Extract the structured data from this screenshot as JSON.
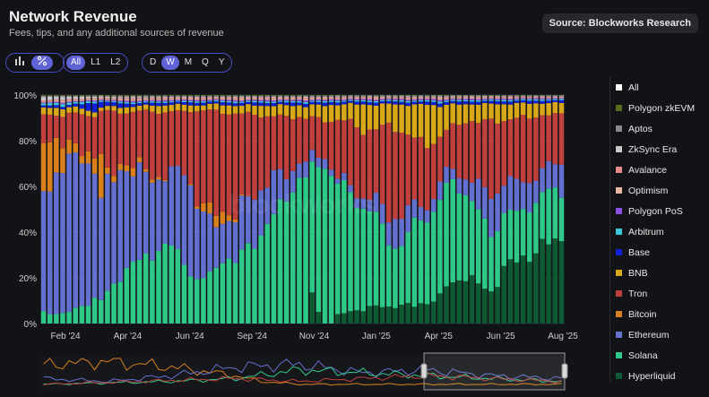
{
  "header": {
    "title": "Network Revenue",
    "subtitle": "Fees, tips, and any additional sources of revenue",
    "source_label": "Source: Blockworks Research"
  },
  "controls": {
    "chart_icons": [
      "bar-chart-icon",
      "percent-icon"
    ],
    "layer_options": [
      "All",
      "L1",
      "L2"
    ],
    "layer_selected": "All",
    "period_options": [
      "D",
      "W",
      "M",
      "Q",
      "Y"
    ],
    "period_selected": "W"
  },
  "legend": {
    "items": [
      {
        "label": "All",
        "color": "#ffffff"
      },
      {
        "label": "Polygon zkEVM",
        "color": "#5a6b1e"
      },
      {
        "label": "Aptos",
        "color": "#8a8a8a"
      },
      {
        "label": "ZkSync Era",
        "color": "#c8c8c8"
      },
      {
        "label": "Avalance",
        "color": "#e88a8a"
      },
      {
        "label": "Optimism",
        "color": "#e8b8a0"
      },
      {
        "label": "Polygon PoS",
        "color": "#8b4ee0"
      },
      {
        "label": "Arbitrum",
        "color": "#3cc7d8"
      },
      {
        "label": "Base",
        "color": "#1020d8"
      },
      {
        "label": "BNB",
        "color": "#d8a818"
      },
      {
        "label": "Tron",
        "color": "#c0403e"
      },
      {
        "label": "Bitcoin",
        "color": "#d8801c"
      },
      {
        "label": "Ethereum",
        "color": "#6470cf"
      },
      {
        "label": "Solana",
        "color": "#2ec889"
      },
      {
        "label": "Hyperliquid",
        "color": "#0e5a34"
      }
    ]
  },
  "chart_data": {
    "type": "bar",
    "stacked": true,
    "normalized": true,
    "x_ticks": [
      "Feb '24",
      "Apr '24",
      "Jun '24",
      "Sep '24",
      "Nov '24",
      "Jan '25",
      "Apr '25",
      "Jun '25",
      "Aug '25"
    ],
    "y_ticks": [
      "0%",
      "20%",
      "40%",
      "60%",
      "80%",
      "100%"
    ],
    "ylim": [
      0,
      100
    ],
    "grid": true,
    "legend_position": "right",
    "watermark": "blockworks",
    "week_count": 82,
    "series": [
      {
        "name": "Hyperliquid",
        "color": "#0e5a34",
        "keypoints": [
          [
            0,
            0
          ],
          [
            41,
            0
          ],
          [
            42,
            12
          ],
          [
            43,
            4
          ],
          [
            44,
            0
          ],
          [
            45,
            0
          ],
          [
            46,
            3
          ],
          [
            48,
            5
          ],
          [
            52,
            6
          ],
          [
            55,
            7
          ],
          [
            58,
            6
          ],
          [
            60,
            8
          ],
          [
            62,
            8
          ],
          [
            63,
            13
          ],
          [
            66,
            18
          ],
          [
            68,
            14
          ],
          [
            70,
            12
          ],
          [
            72,
            20
          ],
          [
            75,
            26
          ],
          [
            78,
            30
          ],
          [
            80,
            33
          ],
          [
            81,
            36
          ]
        ]
      },
      {
        "name": "Solana",
        "color": "#2ec889",
        "keypoints": [
          [
            0,
            5
          ],
          [
            3,
            4
          ],
          [
            6,
            8
          ],
          [
            10,
            14
          ],
          [
            14,
            22
          ],
          [
            18,
            28
          ],
          [
            20,
            32
          ],
          [
            22,
            24
          ],
          [
            24,
            16
          ],
          [
            26,
            20
          ],
          [
            28,
            26
          ],
          [
            30,
            22
          ],
          [
            32,
            28
          ],
          [
            34,
            32
          ],
          [
            36,
            38
          ],
          [
            38,
            46
          ],
          [
            40,
            52
          ],
          [
            42,
            44
          ],
          [
            44,
            58
          ],
          [
            46,
            50
          ],
          [
            48,
            46
          ],
          [
            50,
            40
          ],
          [
            52,
            32
          ],
          [
            54,
            26
          ],
          [
            56,
            22
          ],
          [
            58,
            28
          ],
          [
            60,
            32
          ],
          [
            62,
            30
          ],
          [
            64,
            36
          ],
          [
            66,
            32
          ],
          [
            68,
            26
          ],
          [
            70,
            22
          ],
          [
            72,
            20
          ],
          [
            74,
            18
          ],
          [
            76,
            20
          ],
          [
            78,
            20
          ],
          [
            80,
            20
          ],
          [
            81,
            19
          ]
        ]
      },
      {
        "name": "Ethereum",
        "color": "#6470cf",
        "keypoints": [
          [
            0,
            52
          ],
          [
            2,
            60
          ],
          [
            4,
            68
          ],
          [
            6,
            66
          ],
          [
            8,
            62
          ],
          [
            10,
            48
          ],
          [
            12,
            40
          ],
          [
            14,
            34
          ],
          [
            16,
            32
          ],
          [
            18,
            26
          ],
          [
            20,
            30
          ],
          [
            22,
            36
          ],
          [
            24,
            30
          ],
          [
            26,
            22
          ],
          [
            28,
            14
          ],
          [
            30,
            16
          ],
          [
            32,
            18
          ],
          [
            34,
            16
          ],
          [
            36,
            14
          ],
          [
            38,
            8
          ],
          [
            40,
            6
          ],
          [
            42,
            4
          ],
          [
            44,
            3
          ],
          [
            46,
            2
          ],
          [
            48,
            3
          ],
          [
            50,
            4
          ],
          [
            52,
            6
          ],
          [
            54,
            9
          ],
          [
            56,
            12
          ],
          [
            58,
            6
          ],
          [
            60,
            4
          ],
          [
            62,
            6
          ],
          [
            64,
            4
          ],
          [
            66,
            6
          ],
          [
            68,
            10
          ],
          [
            70,
            14
          ],
          [
            72,
            12
          ],
          [
            74,
            12
          ],
          [
            76,
            10
          ],
          [
            78,
            10
          ],
          [
            80,
            10
          ],
          [
            81,
            12
          ]
        ]
      },
      {
        "name": "Bitcoin",
        "color": "#d8801c",
        "keypoints": [
          [
            0,
            22
          ],
          [
            2,
            16
          ],
          [
            4,
            6
          ],
          [
            6,
            3
          ],
          [
            8,
            8
          ],
          [
            9,
            22
          ],
          [
            10,
            3
          ],
          [
            12,
            2
          ],
          [
            14,
            3
          ],
          [
            16,
            1
          ],
          [
            18,
            1
          ],
          [
            20,
            0
          ],
          [
            22,
            0
          ],
          [
            24,
            1
          ],
          [
            26,
            5
          ],
          [
            28,
            4
          ],
          [
            30,
            1
          ],
          [
            32,
            0
          ],
          [
            81,
            0
          ]
        ]
      },
      {
        "name": "Tron",
        "color": "#c0403e",
        "keypoints": [
          [
            0,
            12
          ],
          [
            2,
            10
          ],
          [
            4,
            14
          ],
          [
            6,
            16
          ],
          [
            8,
            18
          ],
          [
            10,
            30
          ],
          [
            12,
            18
          ],
          [
            14,
            20
          ],
          [
            16,
            22
          ],
          [
            18,
            24
          ],
          [
            20,
            26
          ],
          [
            22,
            22
          ],
          [
            24,
            34
          ],
          [
            26,
            44
          ],
          [
            28,
            36
          ],
          [
            30,
            38
          ],
          [
            32,
            30
          ],
          [
            34,
            26
          ],
          [
            36,
            22
          ],
          [
            38,
            20
          ],
          [
            40,
            16
          ],
          [
            42,
            14
          ],
          [
            44,
            12
          ],
          [
            46,
            22
          ],
          [
            48,
            26
          ],
          [
            50,
            24
          ],
          [
            52,
            26
          ],
          [
            54,
            36
          ],
          [
            56,
            30
          ],
          [
            58,
            24
          ],
          [
            60,
            22
          ],
          [
            62,
            14
          ],
          [
            64,
            16
          ],
          [
            66,
            20
          ],
          [
            68,
            24
          ],
          [
            70,
            28
          ],
          [
            72,
            22
          ],
          [
            74,
            26
          ],
          [
            76,
            24
          ],
          [
            78,
            22
          ],
          [
            80,
            20
          ],
          [
            81,
            20
          ]
        ]
      },
      {
        "name": "BNB",
        "color": "#d8a818",
        "keypoints": [
          [
            0,
            3
          ],
          [
            4,
            3
          ],
          [
            8,
            2
          ],
          [
            12,
            2
          ],
          [
            16,
            2
          ],
          [
            20,
            3
          ],
          [
            24,
            2
          ],
          [
            28,
            3
          ],
          [
            32,
            3
          ],
          [
            36,
            4
          ],
          [
            40,
            4
          ],
          [
            44,
            5
          ],
          [
            48,
            7
          ],
          [
            50,
            10
          ],
          [
            52,
            9
          ],
          [
            54,
            8
          ],
          [
            56,
            10
          ],
          [
            58,
            12
          ],
          [
            60,
            14
          ],
          [
            62,
            10
          ],
          [
            64,
            8
          ],
          [
            66,
            6
          ],
          [
            68,
            7
          ],
          [
            70,
            6
          ],
          [
            72,
            6
          ],
          [
            74,
            6
          ],
          [
            76,
            5
          ],
          [
            78,
            5
          ],
          [
            80,
            5
          ],
          [
            81,
            4
          ]
        ]
      },
      {
        "name": "Base",
        "color": "#1020d8",
        "keypoints": [
          [
            0,
            1
          ],
          [
            4,
            1
          ],
          [
            6,
            2
          ],
          [
            8,
            4
          ],
          [
            10,
            2
          ],
          [
            14,
            1
          ],
          [
            20,
            1
          ],
          [
            30,
            1
          ],
          [
            40,
            1
          ],
          [
            50,
            1
          ],
          [
            60,
            1
          ],
          [
            70,
            1
          ],
          [
            81,
            1
          ]
        ]
      },
      {
        "name": "Arbitrum",
        "color": "#3cc7d8",
        "keypoints": [
          [
            0,
            1
          ],
          [
            6,
            1
          ],
          [
            10,
            0.5
          ],
          [
            20,
            0.5
          ],
          [
            40,
            0.5
          ],
          [
            60,
            0.5
          ],
          [
            81,
            0.5
          ]
        ]
      },
      {
        "name": "Polygon PoS",
        "color": "#8b4ee0",
        "keypoints": [
          [
            0,
            0.5
          ],
          [
            81,
            0.5
          ]
        ]
      },
      {
        "name": "Optimism",
        "color": "#e8b8a0",
        "keypoints": [
          [
            0,
            0.5
          ],
          [
            81,
            0.3
          ]
        ]
      },
      {
        "name": "Avalance",
        "color": "#e88a8a",
        "keypoints": [
          [
            0,
            0.5
          ],
          [
            81,
            0.3
          ]
        ]
      },
      {
        "name": "ZkSync Era",
        "color": "#c8c8c8",
        "keypoints": [
          [
            0,
            1.5
          ],
          [
            10,
            0.5
          ],
          [
            20,
            0.3
          ],
          [
            81,
            0.2
          ]
        ]
      },
      {
        "name": "Aptos",
        "color": "#8a8a8a",
        "keypoints": [
          [
            0,
            0.5
          ],
          [
            81,
            0.3
          ]
        ]
      },
      {
        "name": "Polygon zkEVM",
        "color": "#5a6b1e",
        "keypoints": [
          [
            0,
            0.3
          ],
          [
            81,
            0.1
          ]
        ]
      }
    ],
    "navigator": {
      "lines": [
        {
          "name": "Bitcoin",
          "color": "#d8801c",
          "keypoints": [
            [
              0,
              8
            ],
            [
              10,
              9
            ],
            [
              20,
              7
            ],
            [
              30,
              4
            ],
            [
              34,
              2
            ],
            [
              40,
              1
            ],
            [
              81,
              1
            ]
          ]
        },
        {
          "name": "Ethereum",
          "color": "#6470cf",
          "keypoints": [
            [
              0,
              3
            ],
            [
              10,
              2
            ],
            [
              20,
              4
            ],
            [
              30,
              7
            ],
            [
              40,
              8
            ],
            [
              50,
              5
            ],
            [
              60,
              6
            ],
            [
              70,
              4
            ],
            [
              81,
              3
            ]
          ]
        },
        {
          "name": "Solana",
          "color": "#2ec889",
          "keypoints": [
            [
              0,
              1
            ],
            [
              20,
              2
            ],
            [
              30,
              3
            ],
            [
              40,
              6
            ],
            [
              50,
              5
            ],
            [
              60,
              4
            ],
            [
              70,
              3
            ],
            [
              81,
              2
            ]
          ]
        },
        {
          "name": "Tron",
          "color": "#c0403e",
          "keypoints": [
            [
              0,
              1
            ],
            [
              30,
              3
            ],
            [
              40,
              2
            ],
            [
              60,
              4
            ],
            [
              70,
              3
            ],
            [
              81,
              2
            ]
          ]
        }
      ],
      "selected_range_weeks": [
        60,
        81
      ]
    }
  }
}
